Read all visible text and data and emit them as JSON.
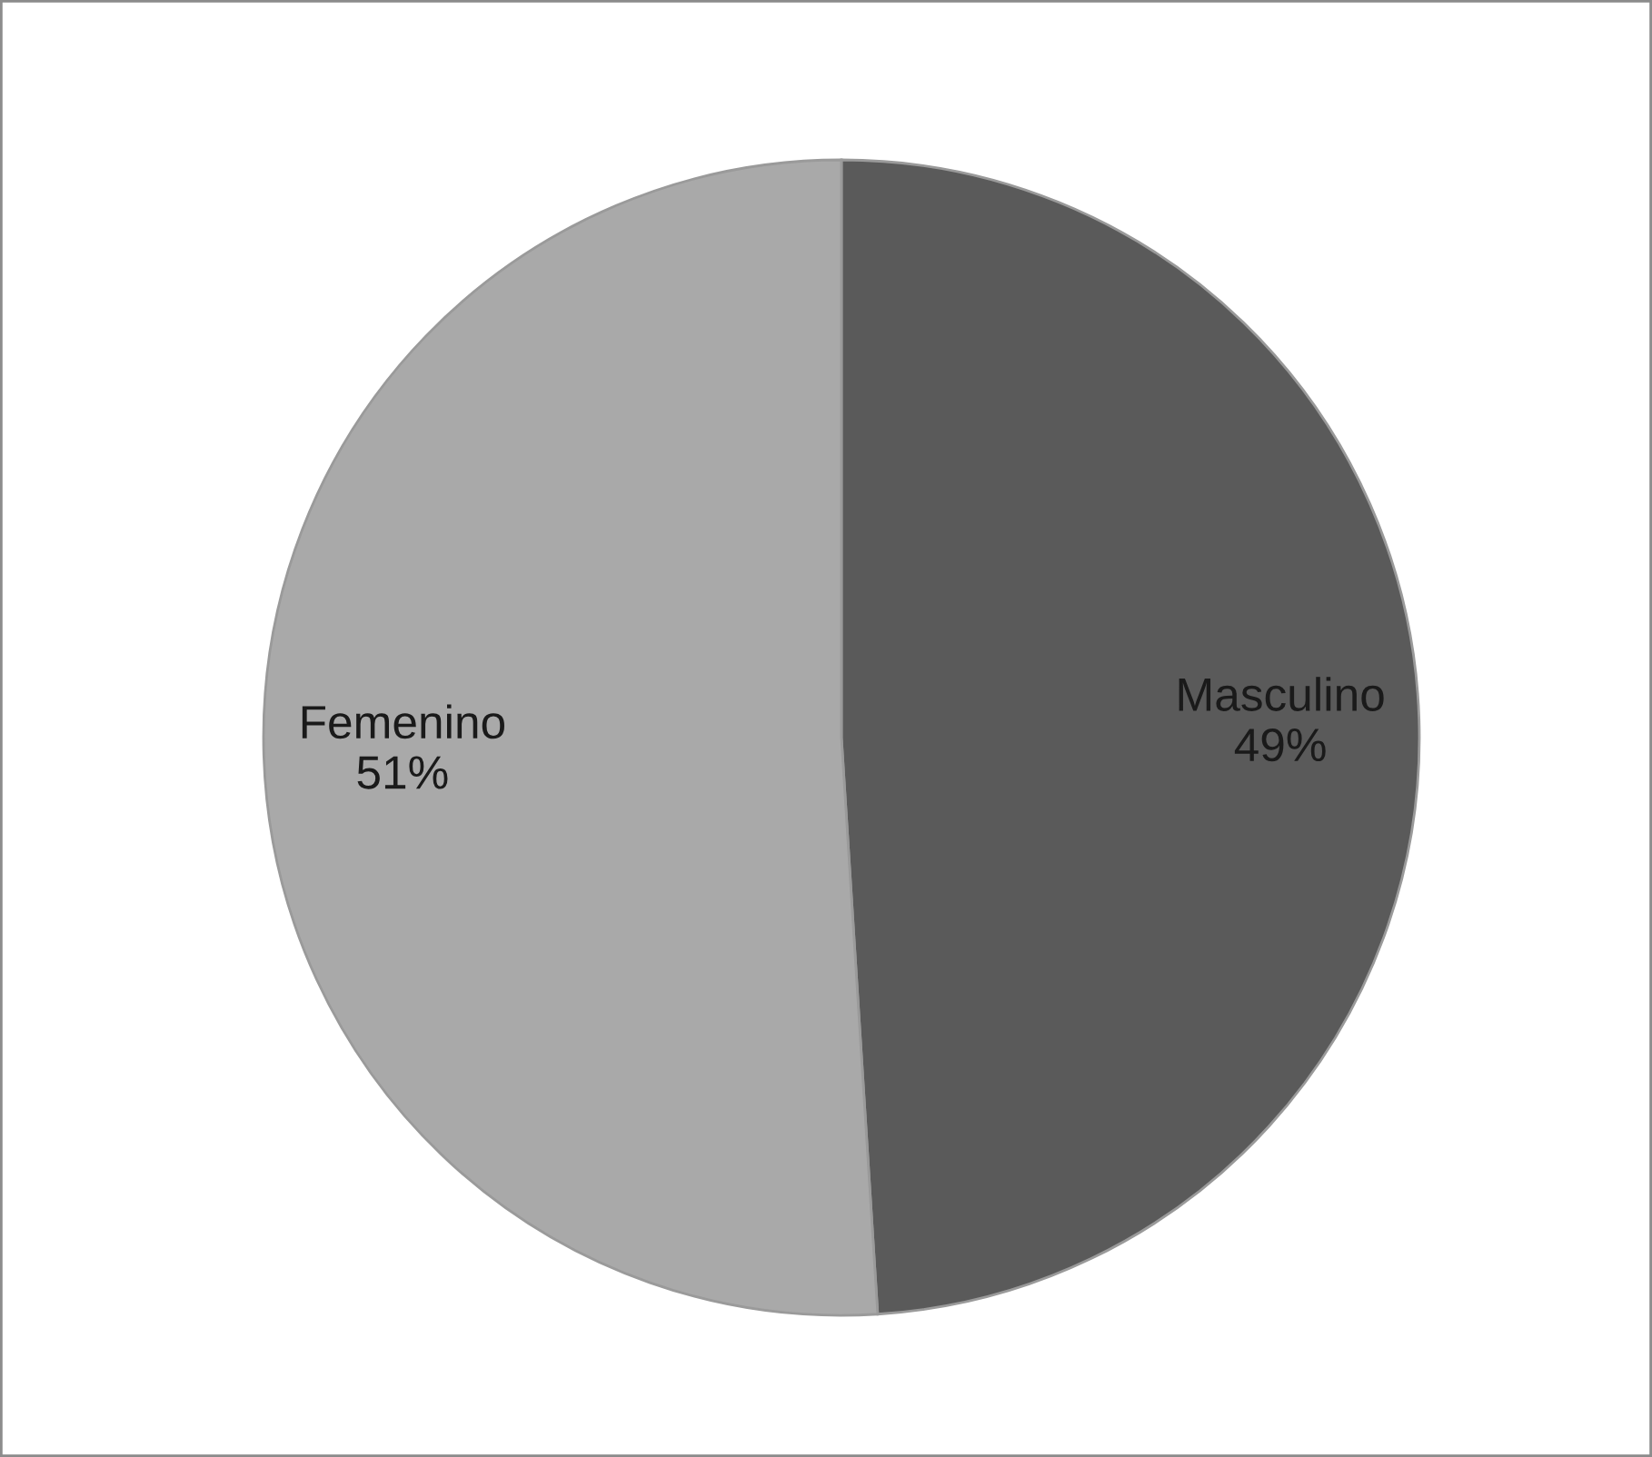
{
  "chart_data": {
    "type": "pie",
    "categories": [
      "Masculino",
      "Femenino"
    ],
    "values": [
      49,
      51
    ],
    "colors": [
      "#5a5a5a",
      "#a9a9a9"
    ],
    "value_labels": [
      "49%",
      "51%"
    ]
  }
}
